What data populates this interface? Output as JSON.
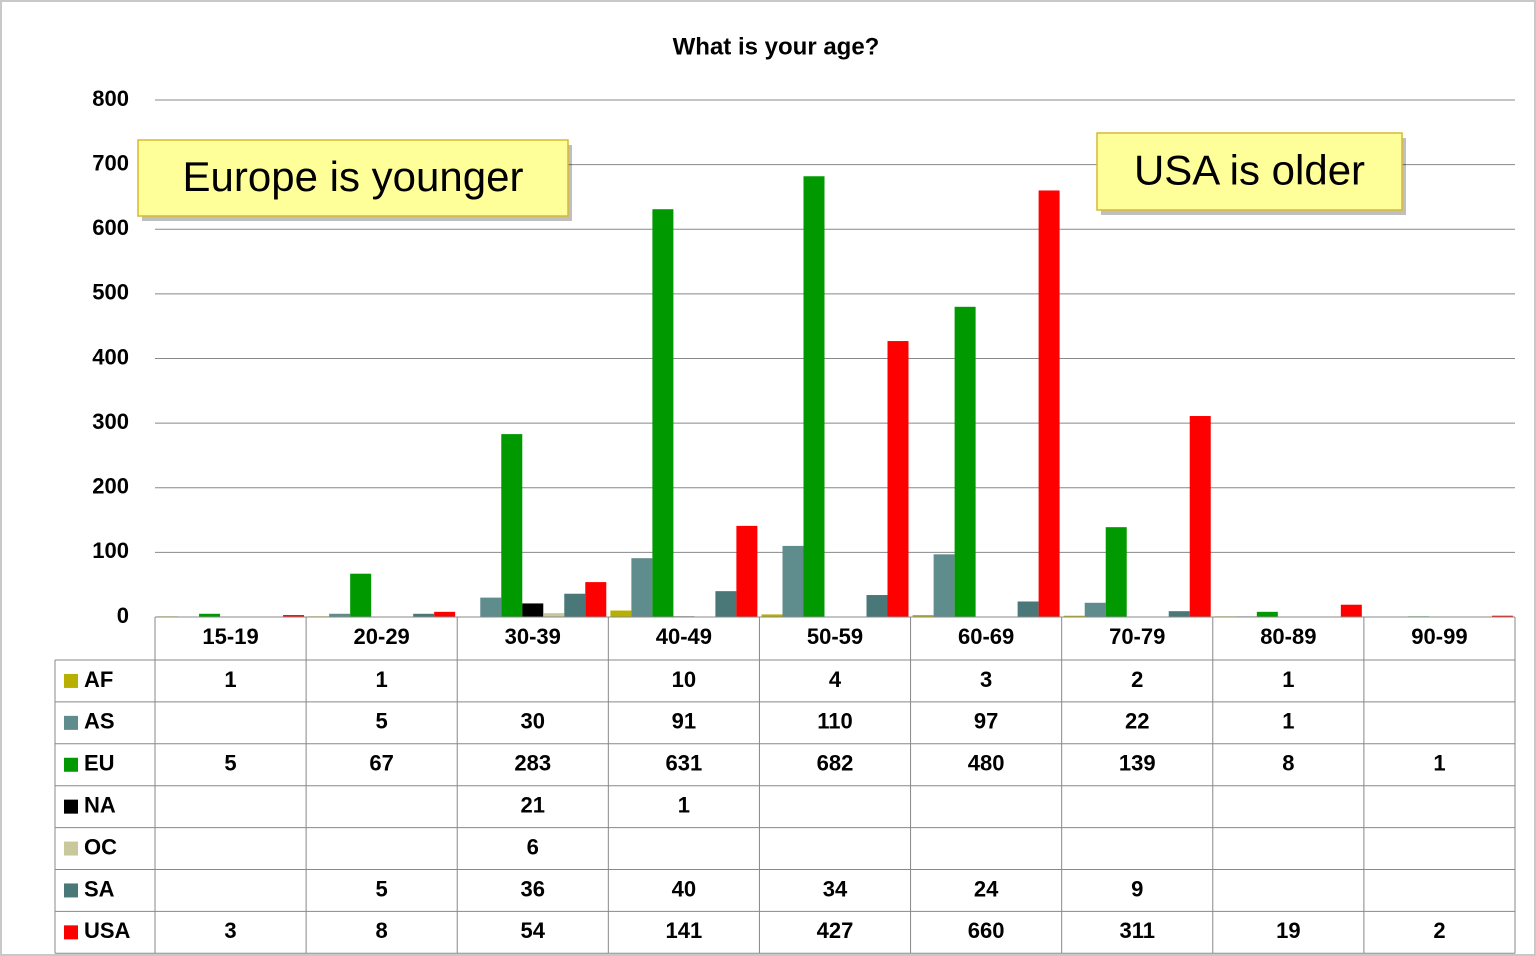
{
  "chart_data": {
    "type": "bar",
    "title": "What is your age?",
    "categories": [
      "15-19",
      "20-29",
      "30-39",
      "40-49",
      "50-59",
      "60-69",
      "70-79",
      "80-89",
      "90-99"
    ],
    "series": [
      {
        "name": "AF",
        "color": "#b8b000",
        "values": [
          1,
          1,
          null,
          10,
          4,
          3,
          2,
          1,
          null
        ]
      },
      {
        "name": "AS",
        "color": "#5f8c8c",
        "values": [
          null,
          5,
          30,
          91,
          110,
          97,
          22,
          1,
          null
        ]
      },
      {
        "name": "EU",
        "color": "#009900",
        "values": [
          5,
          67,
          283,
          631,
          682,
          480,
          139,
          8,
          1
        ]
      },
      {
        "name": "NA",
        "color": "#000000",
        "values": [
          null,
          null,
          21,
          1,
          null,
          null,
          null,
          null,
          null
        ]
      },
      {
        "name": "OC",
        "color": "#c8c89c",
        "values": [
          null,
          null,
          6,
          null,
          null,
          null,
          null,
          null,
          null
        ]
      },
      {
        "name": "SA",
        "color": "#4a7878",
        "values": [
          null,
          5,
          36,
          40,
          34,
          24,
          9,
          null,
          null
        ]
      },
      {
        "name": "USA",
        "color": "#ff0000",
        "values": [
          3,
          8,
          54,
          141,
          427,
          660,
          311,
          19,
          2
        ]
      }
    ],
    "ylim": [
      0,
      800
    ],
    "yticks": [
      0,
      100,
      200,
      300,
      400,
      500,
      600,
      700,
      800
    ],
    "grid": true,
    "annotations": [
      "Europe is younger",
      "USA is older"
    ]
  }
}
